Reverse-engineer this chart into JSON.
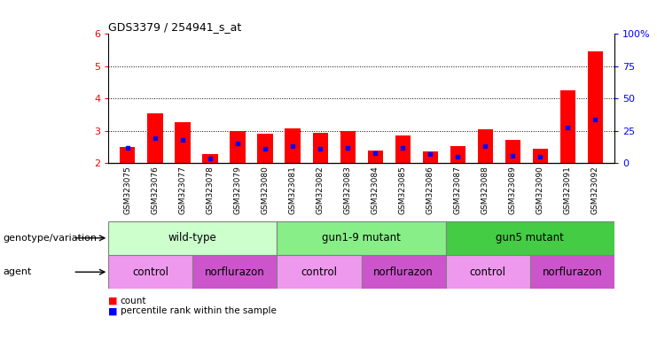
{
  "title": "GDS3379 / 254941_s_at",
  "samples": [
    "GSM323075",
    "GSM323076",
    "GSM323077",
    "GSM323078",
    "GSM323079",
    "GSM323080",
    "GSM323081",
    "GSM323082",
    "GSM323083",
    "GSM323084",
    "GSM323085",
    "GSM323086",
    "GSM323087",
    "GSM323088",
    "GSM323089",
    "GSM323090",
    "GSM323091",
    "GSM323092"
  ],
  "red_values": [
    2.5,
    3.55,
    3.28,
    2.27,
    3.0,
    2.9,
    3.08,
    2.93,
    3.0,
    2.38,
    2.85,
    2.36,
    2.52,
    3.05,
    2.73,
    2.45,
    4.27,
    5.45
  ],
  "blue_values": [
    2.47,
    2.78,
    2.73,
    2.14,
    2.62,
    2.45,
    2.52,
    2.45,
    2.47,
    2.3,
    2.47,
    2.28,
    2.2,
    2.52,
    2.22,
    2.2,
    3.1,
    3.35
  ],
  "ymin": 2.0,
  "ymax": 6.0,
  "yticks": [
    2,
    3,
    4,
    5,
    6
  ],
  "right_yticks": [
    0,
    25,
    50,
    75,
    100
  ],
  "right_yticklabels": [
    "0",
    "25",
    "50",
    "75",
    "100%"
  ],
  "bar_color": "#FF0000",
  "blue_color": "#0000FF",
  "xtick_bg_color": "#D3D3D3",
  "plot_bg": "#FFFFFF",
  "fig_bg": "#FFFFFF",
  "genotype_groups": [
    {
      "label": "wild-type",
      "start": 0,
      "end": 6,
      "color": "#CCFFCC"
    },
    {
      "label": "gun1-9 mutant",
      "start": 6,
      "end": 12,
      "color": "#88EE88"
    },
    {
      "label": "gun5 mutant",
      "start": 12,
      "end": 18,
      "color": "#44CC44"
    }
  ],
  "agent_groups": [
    {
      "label": "control",
      "start": 0,
      "end": 3,
      "color": "#EE99EE"
    },
    {
      "label": "norflurazon",
      "start": 3,
      "end": 6,
      "color": "#CC55CC"
    },
    {
      "label": "control",
      "start": 6,
      "end": 9,
      "color": "#EE99EE"
    },
    {
      "label": "norflurazon",
      "start": 9,
      "end": 12,
      "color": "#CC55CC"
    },
    {
      "label": "control",
      "start": 12,
      "end": 15,
      "color": "#EE99EE"
    },
    {
      "label": "norflurazon",
      "start": 15,
      "end": 18,
      "color": "#CC55CC"
    }
  ],
  "genotype_label": "genotype/variation",
  "agent_label": "agent",
  "legend_count": "count",
  "legend_percentile": "percentile rank within the sample",
  "bar_width": 0.55,
  "dotted_yticks": [
    3,
    4,
    5
  ]
}
